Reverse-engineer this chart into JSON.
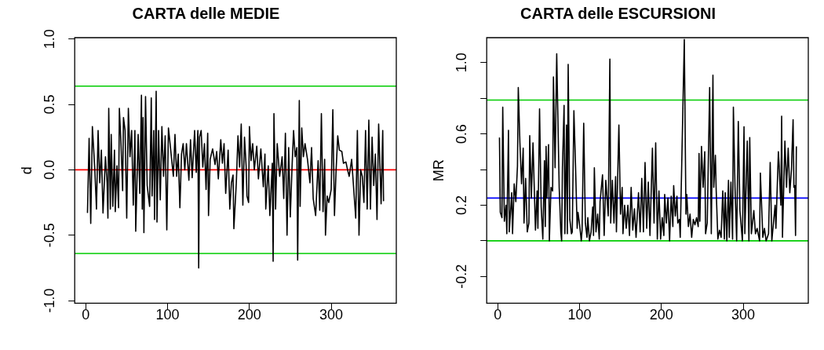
{
  "chart_data": [
    {
      "type": "line",
      "title": "CARTA delle MEDIE",
      "ylabel": "d",
      "xlim": [
        -13.6,
        379.6
      ],
      "ylim": [
        -1.02,
        1.01
      ],
      "xticks": [
        0,
        100,
        200,
        300
      ],
      "yticks": [
        {
          "value": -1,
          "label": "-1.0"
        },
        {
          "value": -0.5,
          "label": "-0.5"
        },
        {
          "value": 0,
          "label": "0.0"
        },
        {
          "value": 0.5,
          "label": "0.5"
        },
        {
          "value": 1,
          "label": "1.0"
        }
      ],
      "grid": false,
      "legend": false,
      "marker": "none",
      "line_style": "solid",
      "ref_lines": [
        {
          "axis": "y",
          "value": 0.64,
          "color": "#00cc00"
        },
        {
          "axis": "y",
          "value": 0,
          "color": "#ff0000"
        },
        {
          "axis": "y",
          "value": -0.64,
          "color": "#00cc00"
        }
      ],
      "series": [
        {
          "color": "#000000",
          "x": [
            2,
            4,
            6,
            8,
            11,
            13,
            15,
            17,
            19,
            21,
            24,
            26,
            27,
            28,
            30,
            31,
            33,
            35,
            36,
            38,
            40,
            41,
            43,
            45,
            46,
            48,
            50,
            52,
            54,
            56,
            58,
            60,
            61,
            64,
            66,
            68,
            69,
            70,
            71,
            73,
            75,
            78,
            80,
            81,
            83,
            84,
            86,
            87,
            89,
            91,
            93,
            95,
            97,
            99,
            101,
            103,
            107,
            109,
            111,
            113,
            115,
            117,
            119,
            121,
            123,
            126,
            128,
            130,
            133,
            135,
            137,
            138,
            139,
            141,
            143,
            145,
            147,
            149,
            150,
            152,
            155,
            158,
            160,
            162,
            165,
            167,
            169,
            171,
            174,
            176,
            178,
            180,
            181,
            184,
            186,
            188,
            190,
            192,
            194,
            196,
            197,
            199,
            200,
            202,
            204,
            206,
            209,
            211,
            214,
            217,
            219,
            220,
            223,
            225,
            228,
            229,
            230,
            232,
            234,
            237,
            240,
            242,
            244,
            246,
            248,
            250,
            252,
            254,
            256,
            258,
            259,
            260,
            261,
            262,
            264,
            266,
            268,
            271,
            274,
            276,
            278,
            281,
            284,
            286,
            288,
            290,
            292,
            293,
            295,
            297,
            300,
            302,
            304,
            306,
            308,
            310,
            313,
            315,
            318,
            320,
            322,
            325,
            327,
            330,
            332,
            334,
            336,
            338,
            340,
            342,
            344,
            346,
            348,
            350,
            352,
            354,
            356,
            358,
            361,
            363,
            364
          ],
          "values": [
            -0.33,
            0.24,
            -0.41,
            0.33,
            0.0,
            -0.3,
            0.3,
            -0.1,
            0.15,
            -0.33,
            0.1,
            -0.1,
            -0.37,
            0.47,
            -0.3,
            0.27,
            -0.28,
            0.15,
            -0.32,
            0.03,
            -0.29,
            0.47,
            0.2,
            -0.16,
            0.4,
            0.3,
            -0.37,
            0.47,
            0.1,
            0.3,
            -0.27,
            0.3,
            -0.47,
            0.27,
            -0.18,
            0.57,
            -0.3,
            0.4,
            -0.48,
            0.56,
            -0.12,
            -0.28,
            0.55,
            -0.2,
            0.3,
            -0.38,
            0.6,
            -0.4,
            0.3,
            -0.23,
            0.33,
            -0.05,
            0.26,
            -0.46,
            0.32,
            0.2,
            -0.05,
            0.27,
            -0.05,
            0.12,
            -0.29,
            0.12,
            0.2,
            0.0,
            0.2,
            -0.08,
            0.23,
            -0.06,
            0.3,
            -0.02,
            0.3,
            -0.75,
            0.25,
            0.3,
            0.02,
            0.2,
            -0.15,
            0.28,
            -0.35,
            0.08,
            0.16,
            0.04,
            0.14,
            -0.07,
            0.23,
            0.05,
            0.2,
            -0.18,
            0.15,
            -0.3,
            -0.1,
            -0.04,
            -0.45,
            -0.1,
            0.26,
            0.02,
            0.35,
            -0.27,
            0.25,
            0.03,
            -0.2,
            -0.25,
            0.33,
            0.07,
            0.2,
            0.0,
            0.18,
            -0.07,
            0.16,
            -0.13,
            0.12,
            -0.3,
            0.03,
            -0.35,
            0.05,
            -0.7,
            0.43,
            -0.3,
            0.2,
            -0.05,
            0.1,
            -0.22,
            0.28,
            -0.5,
            0.17,
            -0.36,
            0.0,
            0.3,
            0.1,
            0.17,
            -0.69,
            -0.1,
            0.53,
            -0.28,
            0.32,
            0.1,
            0.2,
            0.08,
            -0.1,
            0.17,
            -0.22,
            -0.35,
            0.07,
            -0.31,
            0.43,
            -0.32,
            0.08,
            -0.5,
            -0.2,
            -0.25,
            -0.15,
            0.46,
            -0.35,
            0.0,
            0.26,
            0.15,
            0.14,
            0.05,
            0.06,
            0.0,
            -0.05,
            0.08,
            -0.1,
            -0.37,
            0.3,
            -0.5,
            0.0,
            -0.05,
            -0.25,
            0.3,
            -0.3,
            0.38,
            -0.3,
            0.25,
            -0.12,
            0.12,
            -0.38,
            0.35,
            -0.26,
            0.3,
            -0.24
          ]
        }
      ]
    },
    {
      "type": "line",
      "title": "CARTA delle ESCURSIONI",
      "ylabel": "MR",
      "xlim": [
        -13.6,
        379.6
      ],
      "ylim": [
        -0.35,
        1.14
      ],
      "xticks": [
        0,
        100,
        200,
        300
      ],
      "yticks": [
        {
          "value": -0.2,
          "label": "-0.2"
        },
        {
          "value": 0,
          "label": null
        },
        {
          "value": 0.2,
          "label": "0.2"
        },
        {
          "value": 0.4,
          "label": null
        },
        {
          "value": 0.6,
          "label": "0.6"
        },
        {
          "value": 0.8,
          "label": null
        },
        {
          "value": 1,
          "label": "1.0"
        }
      ],
      "grid": false,
      "legend": false,
      "marker": "none",
      "line_style": "solid",
      "ref_lines": [
        {
          "axis": "y",
          "value": 0.79,
          "color": "#00cc00"
        },
        {
          "axis": "y",
          "value": 0.24,
          "color": "#0000ff"
        },
        {
          "axis": "y",
          "value": 0,
          "color": "#00cc00"
        }
      ],
      "series": [
        {
          "color": "#000000",
          "x": [
            2,
            3,
            5,
            6,
            8,
            10,
            11,
            13,
            14,
            17,
            18,
            20,
            22,
            24,
            25,
            27,
            29,
            31,
            32,
            34,
            36,
            38,
            39,
            41,
            43,
            46,
            48,
            49,
            51,
            53,
            55,
            57,
            58,
            59,
            60,
            62,
            63,
            65,
            67,
            68,
            70,
            72,
            75,
            77,
            78,
            79,
            81,
            82,
            84,
            85,
            86,
            88,
            90,
            91,
            93,
            95,
            97,
            98,
            100,
            102,
            103,
            105,
            107,
            109,
            110,
            112,
            114,
            116,
            117,
            118,
            120,
            122,
            124,
            125,
            128,
            130,
            132,
            135,
            137,
            138,
            140,
            142,
            144,
            145,
            148,
            150,
            152,
            153,
            155,
            157,
            159,
            161,
            163,
            165,
            167,
            169,
            172,
            174,
            176,
            178,
            180,
            182,
            184,
            186,
            189,
            191,
            193,
            195,
            197,
            199,
            201,
            203,
            204,
            206,
            208,
            210,
            212,
            214,
            215,
            217,
            219,
            220,
            222,
            223,
            228,
            230,
            231,
            233,
            235,
            237,
            239,
            241,
            243,
            245,
            246,
            247,
            249,
            251,
            253,
            254,
            256,
            259,
            261,
            263,
            264,
            266,
            267,
            269,
            271,
            273,
            275,
            277,
            278,
            280,
            282,
            283,
            285,
            287,
            288,
            290,
            292,
            294,
            296,
            299,
            301,
            302,
            305,
            307,
            308,
            310,
            313,
            315,
            317,
            320,
            321,
            324,
            326,
            328,
            331,
            333,
            335,
            337,
            339,
            340,
            343,
            344,
            346,
            347,
            348,
            351,
            353,
            355,
            357,
            359,
            361,
            362,
            363,
            364,
            365
          ],
          "values": [
            0.58,
            0.16,
            0.13,
            0.75,
            0.11,
            0.2,
            0.04,
            0.62,
            0.05,
            0.27,
            0.04,
            0.32,
            0.22,
            0.42,
            0.86,
            0.55,
            0.32,
            0.52,
            0.1,
            0.35,
            0.05,
            0.1,
            0.59,
            0.24,
            0.55,
            0.06,
            0.28,
            0.07,
            0.74,
            0.19,
            0.01,
            0.45,
            0.08,
            0.53,
            0.24,
            0.54,
            0.0,
            0.3,
            0.28,
            0.92,
            0.41,
            1.05,
            0.3,
            0.05,
            0.0,
            0.41,
            0.76,
            0.04,
            0.65,
            0.04,
            0.99,
            0.12,
            0.04,
            0.05,
            0.73,
            0.42,
            0.07,
            0.16,
            0.09,
            0.0,
            0.06,
            0.66,
            0.1,
            0.02,
            0.13,
            0.0,
            0.05,
            0.19,
            0.03,
            0.41,
            0.05,
            0.15,
            0.01,
            0.22,
            0.37,
            0.03,
            0.34,
            0.14,
            1.02,
            0.1,
            0.34,
            0.1,
            0.36,
            0.05,
            0.65,
            0.15,
            0.3,
            0.04,
            0.2,
            0.07,
            0.2,
            0.03,
            0.3,
            0.06,
            0.18,
            0.02,
            0.27,
            0.05,
            0.35,
            0.05,
            0.44,
            0.07,
            0.33,
            0.03,
            0.52,
            0.1,
            0.55,
            0.01,
            0.28,
            0.01,
            0.13,
            0.03,
            0.26,
            0.1,
            0.24,
            0.0,
            0.25,
            0.08,
            0.31,
            0.14,
            0.25,
            0.1,
            0.12,
            0.02,
            1.13,
            0.15,
            0.26,
            0.08,
            0.15,
            0.02,
            0.12,
            0.09,
            0.13,
            0.08,
            0.49,
            0.11,
            0.53,
            0.3,
            0.5,
            0.04,
            0.1,
            0.86,
            0.04,
            0.93,
            0.3,
            0.48,
            0.28,
            0.01,
            0.06,
            0.02,
            0.28,
            0.01,
            0.27,
            0.0,
            0.34,
            0.02,
            0.33,
            0.01,
            0.75,
            0.3,
            0.0,
            0.67,
            0.17,
            0.0,
            0.64,
            0.04,
            0.56,
            0.0,
            0.58,
            0.04,
            0.17,
            0.04,
            0.07,
            0.0,
            0.38,
            0.02,
            0.07,
            0.0,
            0.04,
            0.44,
            0.0,
            0.1,
            0.2,
            0.07,
            0.5,
            0.42,
            0.2,
            0.7,
            0.02,
            0.56,
            0.3,
            0.52,
            0.27,
            0.4,
            0.68,
            0.3,
            0.31,
            0.03,
            0.53
          ]
        }
      ]
    }
  ]
}
